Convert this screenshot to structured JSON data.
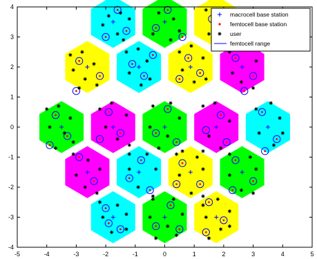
{
  "chart_data": {
    "type": "scatter",
    "title": "",
    "xlabel": "",
    "ylabel": "",
    "xlim": [
      -5,
      5
    ],
    "ylim": [
      -4,
      4
    ],
    "xticks": [
      -5,
      -4,
      -3,
      -2,
      -1,
      0,
      1,
      2,
      3,
      4,
      5
    ],
    "yticks": [
      -4,
      -3,
      -2,
      -1,
      0,
      1,
      2,
      3,
      4
    ],
    "xtick_labels": [
      "-5",
      "-4",
      "-3",
      "-2",
      "-1",
      "0",
      "1",
      "2",
      "3",
      "4",
      "5"
    ],
    "ytick_labels": [
      "-4",
      "-3",
      "-2",
      "-1",
      "0",
      "1",
      "2",
      "3",
      "4"
    ],
    "grid": false,
    "legend_position": "top-right",
    "hex_radius": 0.866,
    "cells": [
      {
        "x": -1.75,
        "y": 3.5,
        "color": "cyan"
      },
      {
        "x": 0.0,
        "y": 3.5,
        "color": "green"
      },
      {
        "x": 1.75,
        "y": 3.5,
        "color": "yellow"
      },
      {
        "x": -2.625,
        "y": 2.0,
        "color": "yellow"
      },
      {
        "x": -0.875,
        "y": 2.0,
        "color": "cyan"
      },
      {
        "x": 0.875,
        "y": 2.0,
        "color": "yellow"
      },
      {
        "x": 2.625,
        "y": 2.0,
        "color": "magenta"
      },
      {
        "x": -3.5,
        "y": 0.0,
        "color": "green"
      },
      {
        "x": -1.75,
        "y": 0.0,
        "color": "magenta"
      },
      {
        "x": 0.0,
        "y": 0.0,
        "color": "green"
      },
      {
        "x": 1.75,
        "y": 0.0,
        "color": "magenta"
      },
      {
        "x": 3.5,
        "y": 0.0,
        "color": "cyan"
      },
      {
        "x": -2.625,
        "y": -1.5,
        "color": "magenta"
      },
      {
        "x": -0.875,
        "y": -1.5,
        "color": "cyan"
      },
      {
        "x": 0.875,
        "y": -1.5,
        "color": "yellow"
      },
      {
        "x": 2.625,
        "y": -1.5,
        "color": "green"
      },
      {
        "x": -1.75,
        "y": -3.0,
        "color": "cyan"
      },
      {
        "x": 0.0,
        "y": -3.0,
        "color": "green"
      },
      {
        "x": 1.75,
        "y": -3.0,
        "color": "yellow"
      }
    ],
    "colors": {
      "cyan": "#00ffff",
      "green": "#00ff00",
      "yellow": "#ffff00",
      "magenta": "#ff00ff",
      "macro_marker": "#0000ff",
      "femto_marker": "#ff0000",
      "user_marker": "#000000",
      "range_line": "#0000ff"
    },
    "series": [
      {
        "name": "macrocell base station",
        "marker": "plus",
        "points": [
          [
            -1.75,
            3.5
          ],
          [
            0,
            3.5
          ],
          [
            1.75,
            3.5
          ],
          [
            -2.625,
            2.0
          ],
          [
            -0.875,
            2.0
          ],
          [
            0.875,
            2.0
          ],
          [
            2.625,
            2.0
          ],
          [
            -3.5,
            0
          ],
          [
            -1.75,
            0
          ],
          [
            0,
            0
          ],
          [
            1.75,
            0
          ],
          [
            3.5,
            0
          ],
          [
            -2.625,
            -1.5
          ],
          [
            -0.875,
            -1.5
          ],
          [
            0.875,
            -1.5
          ],
          [
            2.625,
            -1.5
          ],
          [
            -1.75,
            -3.0
          ],
          [
            0,
            -3.0
          ],
          [
            1.75,
            -3.0
          ]
        ]
      },
      {
        "name": "femtocell base station",
        "marker": "dot",
        "points": [
          [
            -1.6,
            3.9
          ],
          [
            -1.3,
            3.2
          ],
          [
            -2.0,
            3.0
          ],
          [
            0.1,
            3.9
          ],
          [
            -0.3,
            3.3
          ],
          [
            0.6,
            3.0
          ],
          [
            1.6,
            3.6
          ],
          [
            2.1,
            3.0
          ],
          [
            -2.9,
            2.2
          ],
          [
            -2.2,
            1.7
          ],
          [
            -3.0,
            1.2
          ],
          [
            -1.1,
            2.1
          ],
          [
            -0.7,
            1.7
          ],
          [
            -0.4,
            2.4
          ],
          [
            0.8,
            2.3
          ],
          [
            1.2,
            1.8
          ],
          [
            0.5,
            1.6
          ],
          [
            2.4,
            2.3
          ],
          [
            3.0,
            1.7
          ],
          [
            2.7,
            1.2
          ],
          [
            -3.7,
            0.4
          ],
          [
            -3.3,
            -0.3
          ],
          [
            -3.9,
            -0.6
          ],
          [
            -1.9,
            0.5
          ],
          [
            -1.5,
            -0.2
          ],
          [
            -2.2,
            -0.4
          ],
          [
            0.1,
            0.6
          ],
          [
            -0.3,
            -0.2
          ],
          [
            0.4,
            -0.5
          ],
          [
            1.9,
            0.4
          ],
          [
            1.4,
            -0.1
          ],
          [
            2.1,
            -0.5
          ],
          [
            3.3,
            0.5
          ],
          [
            3.8,
            -0.4
          ],
          [
            3.4,
            -0.8
          ],
          [
            -2.9,
            -1.0
          ],
          [
            -2.4,
            -1.8
          ],
          [
            -0.8,
            -1.1
          ],
          [
            -1.2,
            -1.7
          ],
          [
            -0.5,
            -2.1
          ],
          [
            0.6,
            -1.2
          ],
          [
            1.2,
            -1.9
          ],
          [
            0.4,
            -1.9
          ],
          [
            2.4,
            -1.1
          ],
          [
            3.0,
            -1.8
          ],
          [
            2.3,
            -2.1
          ],
          [
            -2.0,
            -2.7
          ],
          [
            -1.5,
            -3.4
          ],
          [
            -1.9,
            -3.2
          ],
          [
            0.2,
            -2.6
          ],
          [
            -0.3,
            -3.3
          ],
          [
            0.5,
            -3.4
          ],
          [
            1.5,
            -2.5
          ],
          [
            2.0,
            -3.1
          ],
          [
            1.4,
            -3.5
          ]
        ]
      },
      {
        "name": "user",
        "marker": "star",
        "points": [
          [
            -1.9,
            3.7
          ],
          [
            -1.5,
            3.8
          ],
          [
            -1.2,
            3.6
          ],
          [
            -2.1,
            3.4
          ],
          [
            -1.6,
            3.1
          ],
          [
            -1.4,
            2.9
          ],
          [
            -0.2,
            3.8
          ],
          [
            0.3,
            3.6
          ],
          [
            0.5,
            3.2
          ],
          [
            -0.4,
            3.1
          ],
          [
            0.2,
            2.9
          ],
          [
            1.4,
            3.9
          ],
          [
            1.9,
            3.7
          ],
          [
            2.2,
            3.4
          ],
          [
            1.5,
            3.1
          ],
          [
            1.9,
            2.8
          ],
          [
            -3.2,
            2.4
          ],
          [
            -2.8,
            2.5
          ],
          [
            -2.4,
            2.1
          ],
          [
            -3.1,
            1.9
          ],
          [
            -2.7,
            1.6
          ],
          [
            -2.3,
            1.4
          ],
          [
            -2.9,
            1.3
          ],
          [
            -1.3,
            2.5
          ],
          [
            -0.9,
            2.6
          ],
          [
            -0.6,
            2.2
          ],
          [
            -1.2,
            1.8
          ],
          [
            -0.8,
            1.4
          ],
          [
            -0.5,
            1.6
          ],
          [
            0.5,
            2.5
          ],
          [
            0.9,
            2.7
          ],
          [
            1.3,
            2.3
          ],
          [
            0.6,
            1.9
          ],
          [
            1.0,
            1.5
          ],
          [
            1.4,
            1.6
          ],
          [
            2.2,
            2.5
          ],
          [
            2.8,
            2.6
          ],
          [
            3.1,
            2.2
          ],
          [
            2.3,
            1.8
          ],
          [
            2.6,
            1.5
          ],
          [
            3.0,
            1.3
          ],
          [
            -4.0,
            0.6
          ],
          [
            -3.6,
            0.7
          ],
          [
            -3.2,
            0.3
          ],
          [
            -3.9,
            0.0
          ],
          [
            -3.4,
            -0.2
          ],
          [
            -3.7,
            -0.7
          ],
          [
            -3.1,
            -0.5
          ],
          [
            -2.2,
            0.6
          ],
          [
            -1.8,
            0.8
          ],
          [
            -1.3,
            0.4
          ],
          [
            -2.0,
            0.0
          ],
          [
            -1.6,
            -0.4
          ],
          [
            -1.2,
            -0.6
          ],
          [
            -0.4,
            0.7
          ],
          [
            0.2,
            0.8
          ],
          [
            0.5,
            0.3
          ],
          [
            -0.5,
            0.0
          ],
          [
            0.1,
            -0.3
          ],
          [
            -0.2,
            -0.7
          ],
          [
            0.6,
            -0.8
          ],
          [
            1.3,
            0.7
          ],
          [
            1.7,
            0.8
          ],
          [
            2.2,
            0.2
          ],
          [
            1.5,
            -0.3
          ],
          [
            1.9,
            -0.7
          ],
          [
            1.3,
            -0.8
          ],
          [
            3.1,
            0.6
          ],
          [
            3.6,
            0.8
          ],
          [
            3.9,
            0.3
          ],
          [
            3.2,
            -0.2
          ],
          [
            3.7,
            -0.6
          ],
          [
            4.0,
            -0.2
          ],
          [
            -3.1,
            -0.9
          ],
          [
            -2.6,
            -1.1
          ],
          [
            -2.2,
            -1.4
          ],
          [
            -3.0,
            -1.6
          ],
          [
            -2.7,
            -2.0
          ],
          [
            -2.3,
            -2.2
          ],
          [
            -1.2,
            -0.9
          ],
          [
            -0.6,
            -0.9
          ],
          [
            -0.3,
            -1.4
          ],
          [
            -1.2,
            -1.4
          ],
          [
            -0.9,
            -2.0
          ],
          [
            -0.4,
            -2.3
          ],
          [
            0.4,
            -0.9
          ],
          [
            1.1,
            -1.0
          ],
          [
            1.3,
            -1.4
          ],
          [
            0.5,
            -1.6
          ],
          [
            0.9,
            -2.2
          ],
          [
            1.3,
            -2.3
          ],
          [
            2.2,
            -0.9
          ],
          [
            2.9,
            -1.0
          ],
          [
            3.1,
            -1.4
          ],
          [
            2.2,
            -1.6
          ],
          [
            2.6,
            -2.1
          ],
          [
            3.0,
            -2.2
          ],
          [
            -2.2,
            -2.5
          ],
          [
            -1.6,
            -2.6
          ],
          [
            -1.3,
            -2.9
          ],
          [
            -2.1,
            -3.0
          ],
          [
            -1.8,
            -3.5
          ],
          [
            -1.3,
            -3.4
          ],
          [
            -0.4,
            -2.4
          ],
          [
            0.3,
            -2.4
          ],
          [
            0.6,
            -2.9
          ],
          [
            -0.5,
            -3.0
          ],
          [
            0.1,
            -3.3
          ],
          [
            -0.3,
            -3.7
          ],
          [
            0.4,
            -3.6
          ],
          [
            1.3,
            -2.6
          ],
          [
            1.8,
            -2.4
          ],
          [
            2.2,
            -2.8
          ],
          [
            1.4,
            -3.0
          ],
          [
            1.9,
            -3.4
          ],
          [
            1.5,
            -3.7
          ],
          [
            2.2,
            -3.3
          ]
        ]
      },
      {
        "name": "femtocell range",
        "marker": "circle",
        "radius": 0.12,
        "points": [
          [
            -1.6,
            3.9
          ],
          [
            -1.3,
            3.2
          ],
          [
            -2.0,
            3.0
          ],
          [
            0.1,
            3.9
          ],
          [
            -0.3,
            3.3
          ],
          [
            0.6,
            3.0
          ],
          [
            1.6,
            3.6
          ],
          [
            2.1,
            3.0
          ],
          [
            -2.9,
            2.2
          ],
          [
            -2.2,
            1.7
          ],
          [
            -3.0,
            1.2
          ],
          [
            -1.1,
            2.1
          ],
          [
            -0.7,
            1.7
          ],
          [
            -0.4,
            2.4
          ],
          [
            0.8,
            2.3
          ],
          [
            1.2,
            1.8
          ],
          [
            0.5,
            1.6
          ],
          [
            2.4,
            2.3
          ],
          [
            3.0,
            1.7
          ],
          [
            2.7,
            1.2
          ],
          [
            -3.7,
            0.4
          ],
          [
            -3.3,
            -0.3
          ],
          [
            -3.9,
            -0.6
          ],
          [
            -1.9,
            0.5
          ],
          [
            -1.5,
            -0.2
          ],
          [
            -2.2,
            -0.4
          ],
          [
            0.1,
            0.6
          ],
          [
            -0.3,
            -0.2
          ],
          [
            0.4,
            -0.5
          ],
          [
            1.9,
            0.4
          ],
          [
            1.4,
            -0.1
          ],
          [
            2.1,
            -0.5
          ],
          [
            3.3,
            0.5
          ],
          [
            3.8,
            -0.4
          ],
          [
            3.4,
            -0.8
          ],
          [
            -2.9,
            -1.0
          ],
          [
            -2.4,
            -1.8
          ],
          [
            -0.8,
            -1.1
          ],
          [
            -1.2,
            -1.7
          ],
          [
            -0.5,
            -2.1
          ],
          [
            0.6,
            -1.2
          ],
          [
            1.2,
            -1.9
          ],
          [
            0.4,
            -1.9
          ],
          [
            2.4,
            -1.1
          ],
          [
            3.0,
            -1.8
          ],
          [
            2.3,
            -2.1
          ],
          [
            -2.0,
            -2.7
          ],
          [
            -1.5,
            -3.4
          ],
          [
            -1.9,
            -3.2
          ],
          [
            0.2,
            -2.6
          ],
          [
            -0.3,
            -3.3
          ],
          [
            0.5,
            -3.4
          ],
          [
            1.5,
            -2.5
          ],
          [
            2.0,
            -3.1
          ],
          [
            1.4,
            -3.5
          ]
        ]
      }
    ],
    "legend": [
      {
        "label": "macrocell base station",
        "marker": "plus"
      },
      {
        "label": "femtocell base station",
        "marker": "dot"
      },
      {
        "label": "user",
        "marker": "star"
      },
      {
        "label": "femtocell range",
        "marker": "line"
      }
    ]
  }
}
